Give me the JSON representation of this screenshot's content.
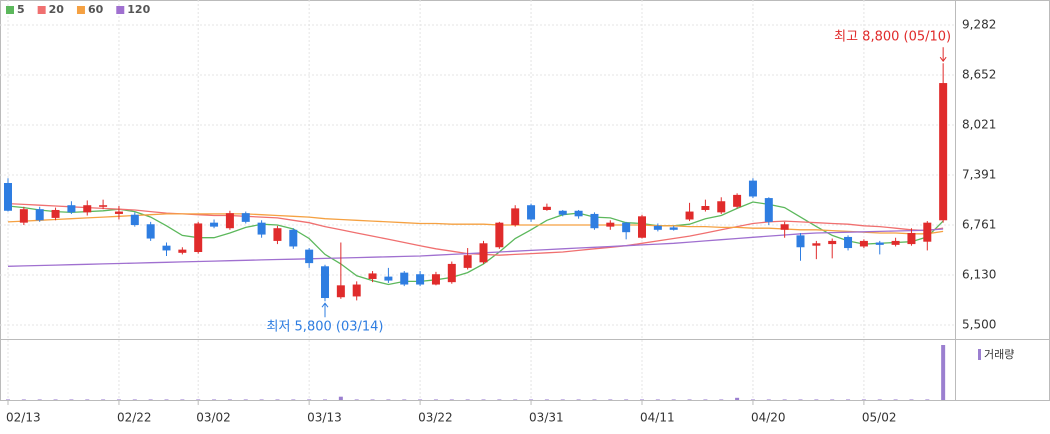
{
  "chart_data": {
    "type": "candlestick",
    "categories": [
      "02/13",
      null,
      null,
      null,
      null,
      null,
      null,
      "02/22",
      null,
      null,
      null,
      null,
      "03/02",
      null,
      null,
      null,
      null,
      null,
      null,
      "03/13",
      null,
      null,
      null,
      null,
      null,
      null,
      "03/22",
      null,
      null,
      null,
      null,
      null,
      null,
      "03/31",
      null,
      null,
      null,
      null,
      null,
      null,
      "04/11",
      null,
      null,
      null,
      null,
      null,
      null,
      "04/20",
      null,
      null,
      null,
      null,
      null,
      null,
      "05/02",
      null,
      null,
      null,
      null,
      null
    ],
    "open": [
      7290,
      6790,
      6960,
      6850,
      7010,
      6920,
      6990,
      6900,
      6890,
      6770,
      6500,
      6410,
      6420,
      6790,
      6720,
      6910,
      6790,
      6560,
      6700,
      6450,
      6240,
      5850,
      5860,
      6080,
      6110,
      6160,
      6140,
      6010,
      6040,
      6220,
      6290,
      6480,
      6760,
      7010,
      6950,
      6940,
      6940,
      6900,
      6740,
      6790,
      6600,
      6750,
      6730,
      6830,
      6950,
      6920,
      6990,
      7320,
      7100,
      6700,
      6630,
      6500,
      6520,
      6610,
      6490,
      6540,
      6510,
      6520,
      6550,
      6820
    ],
    "high": [
      7350,
      6990,
      6990,
      6980,
      7060,
      7070,
      7080,
      7000,
      6920,
      6800,
      6540,
      6480,
      6800,
      6830,
      6940,
      6930,
      6820,
      6750,
      6720,
      6470,
      6260,
      6540,
      6050,
      6180,
      6220,
      6180,
      6180,
      6170,
      6300,
      6470,
      6560,
      6800,
      7010,
      7030,
      7030,
      6950,
      6950,
      6920,
      6820,
      6800,
      6890,
      6780,
      6750,
      7040,
      7080,
      7110,
      7160,
      7350,
      7110,
      6800,
      6660,
      6560,
      6590,
      6630,
      6580,
      6560,
      6600,
      6720,
      6810,
      8800
    ],
    "low": [
      6930,
      6760,
      6800,
      6820,
      6900,
      6880,
      6960,
      6830,
      6740,
      6560,
      6370,
      6390,
      6400,
      6720,
      6700,
      6780,
      6600,
      6520,
      6460,
      6220,
      5800,
      5830,
      5810,
      6040,
      6030,
      5990,
      5990,
      6000,
      6020,
      6200,
      6270,
      6460,
      6740,
      6800,
      6940,
      6870,
      6840,
      6700,
      6700,
      6580,
      6590,
      6680,
      6690,
      6810,
      6930,
      6900,
      6970,
      7100,
      6760,
      6600,
      6310,
      6330,
      6340,
      6440,
      6470,
      6390,
      6490,
      6500,
      6440,
      6790
    ],
    "close": [
      6940,
      6960,
      6820,
      6950,
      6920,
      7010,
      7010,
      6930,
      6760,
      6590,
      6440,
      6450,
      6780,
      6740,
      6910,
      6800,
      6640,
      6720,
      6490,
      6280,
      5840,
      6000,
      6010,
      6150,
      6060,
      6010,
      6010,
      6140,
      6270,
      6380,
      6530,
      6790,
      6970,
      6830,
      6990,
      6890,
      6870,
      6720,
      6790,
      6670,
      6870,
      6700,
      6700,
      6930,
      7000,
      7060,
      7140,
      7120,
      6800,
      6770,
      6480,
      6530,
      6560,
      6470,
      6560,
      6510,
      6560,
      6660,
      6790,
      8550
    ],
    "up_color": "#e02b2b",
    "down_color": "#2e7de1",
    "series": [
      {
        "name": "5",
        "color": "#5cb85c",
        "values": [
          7000,
          6980,
          6950,
          6930,
          6920,
          6930,
          6940,
          6960,
          6930,
          6860,
          6750,
          6630,
          6600,
          6600,
          6660,
          6730,
          6770,
          6760,
          6710,
          6590,
          6390,
          6270,
          6120,
          6060,
          6010,
          6050,
          6050,
          6070,
          6100,
          6160,
          6270,
          6420,
          6590,
          6700,
          6820,
          6890,
          6910,
          6860,
          6850,
          6790,
          6780,
          6750,
          6750,
          6770,
          6840,
          6880,
          6970,
          7050,
          7020,
          6980,
          6860,
          6740,
          6630,
          6560,
          6520,
          6530,
          6540,
          6550,
          6610,
          6810
        ]
      },
      {
        "name": "20",
        "color": "#f07070",
        "values": [
          7030,
          7020,
          7010,
          7000,
          6990,
          6980,
          6970,
          6960,
          6950,
          6930,
          6910,
          6900,
          6890,
          6880,
          6880,
          6870,
          6860,
          6850,
          6820,
          6790,
          6740,
          6700,
          6660,
          6620,
          6580,
          6540,
          6500,
          6460,
          6430,
          6400,
          6390,
          6380,
          6390,
          6400,
          6410,
          6420,
          6440,
          6460,
          6480,
          6500,
          6530,
          6560,
          6590,
          6620,
          6660,
          6700,
          6740,
          6780,
          6800,
          6810,
          6800,
          6790,
          6780,
          6770,
          6750,
          6740,
          6720,
          6700,
          6690,
          6720
        ]
      },
      {
        "name": "60",
        "color": "#f5a142",
        "values": [
          6800,
          6810,
          6820,
          6830,
          6840,
          6850,
          6860,
          6870,
          6880,
          6890,
          6900,
          6900,
          6900,
          6900,
          6900,
          6900,
          6890,
          6880,
          6870,
          6860,
          6840,
          6830,
          6820,
          6810,
          6800,
          6790,
          6780,
          6780,
          6770,
          6770,
          6770,
          6760,
          6760,
          6760,
          6760,
          6760,
          6760,
          6760,
          6760,
          6760,
          6760,
          6750,
          6750,
          6740,
          6740,
          6730,
          6730,
          6720,
          6720,
          6710,
          6700,
          6700,
          6690,
          6680,
          6670,
          6660,
          6660,
          6650,
          6650,
          6680
        ]
      },
      {
        "name": "120",
        "color": "#a070d0",
        "values": [
          6240,
          6245,
          6250,
          6255,
          6260,
          6265,
          6270,
          6275,
          6280,
          6285,
          6290,
          6295,
          6300,
          6305,
          6310,
          6315,
          6320,
          6325,
          6330,
          6335,
          6340,
          6345,
          6350,
          6355,
          6360,
          6365,
          6370,
          6380,
          6390,
          6400,
          6410,
          6420,
          6430,
          6440,
          6450,
          6460,
          6470,
          6480,
          6490,
          6500,
          6510,
          6520,
          6530,
          6545,
          6560,
          6575,
          6590,
          6605,
          6620,
          6635,
          6650,
          6660,
          6665,
          6670,
          6675,
          6680,
          6685,
          6690,
          6695,
          6710
        ]
      }
    ],
    "volume": {
      "name": "거래량",
      "color": "#9b7fd0",
      "values": [
        10,
        10,
        10,
        10,
        10,
        10,
        10,
        10,
        10,
        10,
        10,
        10,
        10,
        10,
        10,
        10,
        10,
        10,
        10,
        10,
        10,
        60,
        10,
        10,
        10,
        10,
        10,
        10,
        10,
        10,
        10,
        10,
        10,
        10,
        10,
        10,
        10,
        10,
        10,
        10,
        10,
        10,
        10,
        10,
        10,
        10,
        40,
        10,
        10,
        10,
        10,
        10,
        10,
        10,
        10,
        10,
        10,
        10,
        10,
        1000
      ]
    },
    "ylim": [
      5336,
      9597
    ],
    "yticks": [
      {
        "value": 9282,
        "label": "9,282"
      },
      {
        "value": 8652,
        "label": "8,652"
      },
      {
        "value": 8021,
        "label": "8,021"
      },
      {
        "value": 7391,
        "label": "7,391"
      },
      {
        "value": 6761,
        "label": "6,761"
      },
      {
        "value": 6130,
        "label": "6,130"
      },
      {
        "value": 5500,
        "label": "5,500"
      }
    ],
    "grid": true,
    "annotations": {
      "high": "최고 8,800 (05/10)",
      "low": "최저 5,800 (03/14)"
    }
  }
}
